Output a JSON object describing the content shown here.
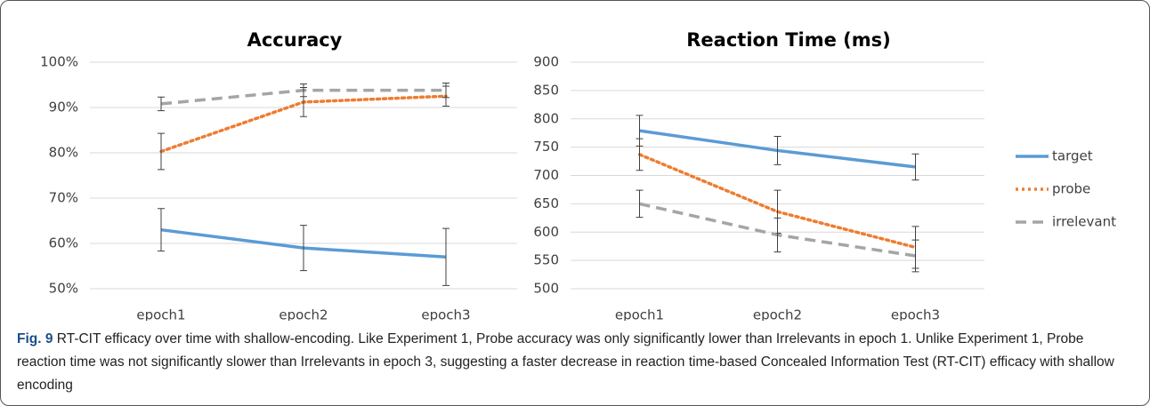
{
  "chart_data": [
    {
      "type": "line",
      "title": "Accuracy",
      "categories": [
        "epoch1",
        "epoch2",
        "epoch3"
      ],
      "series": [
        {
          "name": "target",
          "color": "#5b9bd5",
          "style": "solid",
          "values": [
            63,
            59,
            57
          ],
          "errors": [
            4.7,
            5,
            6.3
          ]
        },
        {
          "name": "probe",
          "color": "#ed7d31",
          "style": "dotted",
          "values": [
            80.3,
            91.2,
            92.5
          ],
          "errors": [
            4,
            3.2,
            2.2
          ]
        },
        {
          "name": "irrelevant",
          "color": "#a5a5a5",
          "style": "dashed",
          "values": [
            90.8,
            93.8,
            93.8
          ],
          "errors": [
            1.5,
            1.4,
            1.6
          ]
        }
      ],
      "ylim": [
        50,
        100
      ],
      "yticks": [
        {
          "value": 50,
          "label": "50%"
        },
        {
          "value": 60,
          "label": "60%"
        },
        {
          "value": 70,
          "label": "70%"
        },
        {
          "value": 80,
          "label": "80%"
        },
        {
          "value": 90,
          "label": "90%"
        },
        {
          "value": 100,
          "label": "100%"
        }
      ],
      "grid": true
    },
    {
      "type": "line",
      "title": "Reaction Time (ms)",
      "categories": [
        "epoch1",
        "epoch2",
        "epoch3"
      ],
      "series": [
        {
          "name": "target",
          "color": "#5b9bd5",
          "style": "solid",
          "values": [
            779,
            744,
            715
          ],
          "errors": [
            27,
            25,
            23
          ]
        },
        {
          "name": "probe",
          "color": "#ed7d31",
          "style": "dotted",
          "values": [
            737,
            636,
            573
          ],
          "errors": [
            28,
            38,
            37
          ]
        },
        {
          "name": "irrelevant",
          "color": "#a5a5a5",
          "style": "dashed",
          "values": [
            650,
            595,
            558
          ],
          "errors": [
            24,
            30,
            28
          ]
        }
      ],
      "ylim": [
        500,
        900
      ],
      "yticks": [
        500,
        550,
        600,
        650,
        700,
        750,
        800,
        850,
        900
      ],
      "grid": true,
      "legend": "right"
    }
  ],
  "caption": {
    "label": "Fig. 9",
    "text": "RT-CIT efficacy over time with shallow-encoding. Like Experiment 1, Probe accuracy was only significantly lower than Irrelevants in epoch 1. Unlike Experiment 1, Probe reaction time was not significantly slower than Irrelevants in epoch 3, suggesting a faster decrease in reaction time-based Concealed Information Test (RT-CIT) efficacy with shallow encoding"
  }
}
